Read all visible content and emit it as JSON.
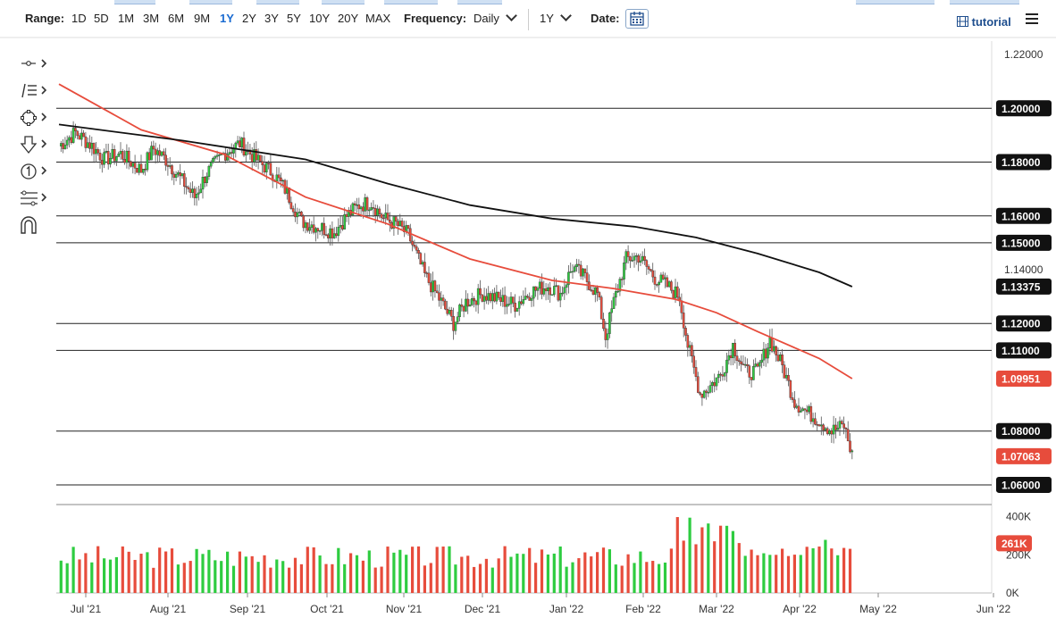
{
  "toolbar": {
    "range_label": "Range:",
    "ranges": [
      "1D",
      "5D",
      "1M",
      "3M",
      "6M",
      "9M",
      "1Y",
      "2Y",
      "3Y",
      "5Y",
      "10Y",
      "20Y",
      "MAX"
    ],
    "active_range": "1Y",
    "frequency_label": "Frequency:",
    "frequency_value": "Daily",
    "period_value": "1Y",
    "date_label": "Date:",
    "tutorial_label": "tutorial",
    "accent_color": "#1a6bd1"
  },
  "sidebar_tools": [
    "crosshair-tool-icon",
    "trend-lines-icon",
    "shapes-icon",
    "arrow-down-icon",
    "annotation-number-icon",
    "fibonacci-icon",
    "magnet-icon"
  ],
  "chart_data": {
    "type": "candlestick",
    "instrument_hint": "EUR/USD daily",
    "x_ticks": [
      "Jul '21",
      "Aug '21",
      "Sep '21",
      "Oct '21",
      "Nov '21",
      "Dec '21",
      "Jan '22",
      "Feb '22",
      "Mar '22",
      "Apr '22",
      "May '22",
      "Jun '22"
    ],
    "y_ticks": [
      "1.22000",
      "1.14000"
    ],
    "ylim": [
      1.055,
      1.225
    ],
    "horizontal_levels": [
      {
        "value": "1.20000"
      },
      {
        "value": "1.18000"
      },
      {
        "value": "1.16000"
      },
      {
        "value": "1.15000"
      },
      {
        "value": "1.12000"
      },
      {
        "value": "1.11000"
      },
      {
        "value": "1.08000"
      },
      {
        "value": "1.06000"
      }
    ],
    "price_labels": [
      {
        "value": "1.13375",
        "color": "#111111"
      },
      {
        "value": "1.09951",
        "color": "#e74c3c"
      },
      {
        "value": "1.07063",
        "color": "#e74c3c"
      }
    ],
    "series_path": [
      [
        0,
        1.186
      ],
      [
        8,
        1.191
      ],
      [
        16,
        1.186
      ],
      [
        22,
        1.181
      ],
      [
        30,
        1.183
      ],
      [
        40,
        1.177
      ],
      [
        46,
        1.185
      ],
      [
        52,
        1.181
      ],
      [
        60,
        1.173
      ],
      [
        66,
        1.167
      ],
      [
        72,
        1.176
      ],
      [
        80,
        1.183
      ],
      [
        88,
        1.187
      ],
      [
        96,
        1.181
      ],
      [
        104,
        1.176
      ],
      [
        110,
        1.17
      ],
      [
        118,
        1.158
      ],
      [
        126,
        1.156
      ],
      [
        134,
        1.154
      ],
      [
        140,
        1.16
      ],
      [
        146,
        1.164
      ],
      [
        152,
        1.165
      ],
      [
        158,
        1.159
      ],
      [
        164,
        1.157
      ],
      [
        170,
        1.153
      ],
      [
        178,
        1.138
      ],
      [
        186,
        1.128
      ],
      [
        192,
        1.12
      ],
      [
        198,
        1.128
      ],
      [
        206,
        1.131
      ],
      [
        214,
        1.129
      ],
      [
        222,
        1.127
      ],
      [
        230,
        1.132
      ],
      [
        238,
        1.134
      ],
      [
        244,
        1.131
      ],
      [
        250,
        1.141
      ],
      [
        256,
        1.137
      ],
      [
        262,
        1.131
      ],
      [
        266,
        1.115
      ],
      [
        270,
        1.128
      ],
      [
        276,
        1.144
      ],
      [
        282,
        1.145
      ],
      [
        290,
        1.137
      ],
      [
        296,
        1.134
      ],
      [
        302,
        1.13
      ],
      [
        306,
        1.112
      ],
      [
        312,
        1.094
      ],
      [
        316,
        1.096
      ],
      [
        322,
        1.101
      ],
      [
        328,
        1.112
      ],
      [
        334,
        1.102
      ],
      [
        340,
        1.102
      ],
      [
        346,
        1.114
      ],
      [
        352,
        1.104
      ],
      [
        358,
        1.091
      ],
      [
        364,
        1.087
      ],
      [
        370,
        1.084
      ],
      [
        376,
        1.08
      ],
      [
        382,
        1.082
      ],
      [
        386,
        1.071
      ]
    ],
    "moving_averages": [
      {
        "color": "#e74c3c",
        "points": [
          [
            0,
            1.209
          ],
          [
            40,
            1.192
          ],
          [
            80,
            1.183
          ],
          [
            120,
            1.167
          ],
          [
            160,
            1.157
          ],
          [
            200,
            1.144
          ],
          [
            240,
            1.136
          ],
          [
            270,
            1.133
          ],
          [
            300,
            1.129
          ],
          [
            320,
            1.124
          ],
          [
            340,
            1.117
          ],
          [
            370,
            1.107
          ],
          [
            386,
            1.0995
          ]
        ]
      },
      {
        "color": "#111111",
        "points": [
          [
            0,
            1.194
          ],
          [
            60,
            1.188
          ],
          [
            120,
            1.181
          ],
          [
            160,
            1.172
          ],
          [
            200,
            1.164
          ],
          [
            240,
            1.159
          ],
          [
            280,
            1.156
          ],
          [
            310,
            1.152
          ],
          [
            340,
            1.146
          ],
          [
            370,
            1.139
          ],
          [
            386,
            1.1337
          ]
        ]
      }
    ],
    "volume": {
      "y_ticks": [
        "400K",
        "200K",
        "0K"
      ],
      "last_label": "261K",
      "up_color": "#2ecc40",
      "down_color": "#e74c3c",
      "max": 450
    },
    "colors": {
      "up": "#2ecc40",
      "down": "#e74c3c",
      "grid": "#e6e6e6"
    }
  }
}
